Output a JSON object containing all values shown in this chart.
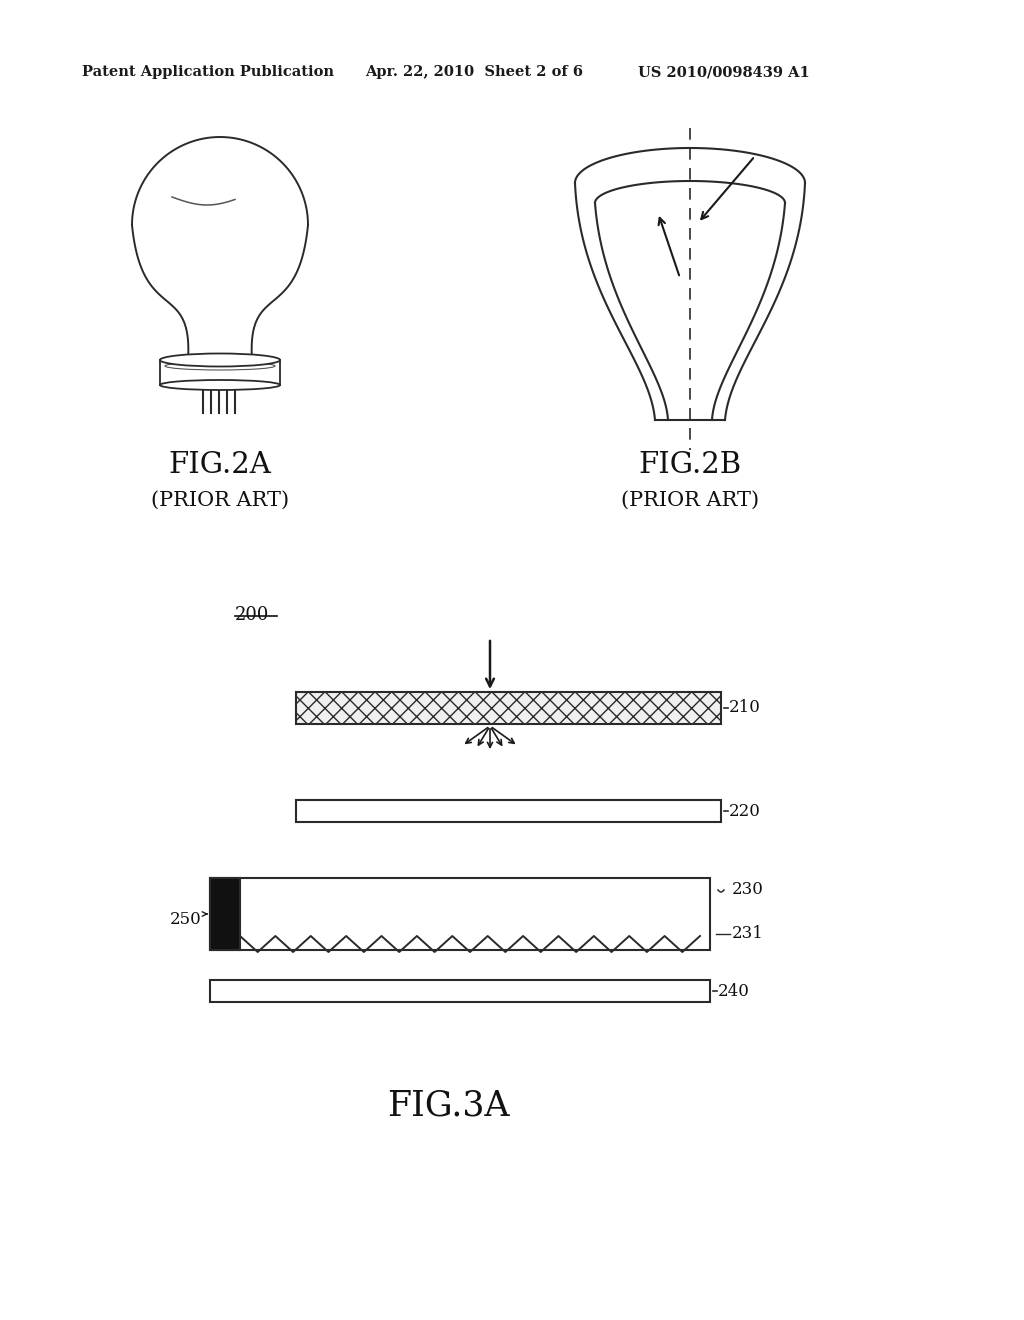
{
  "background_color": "#ffffff",
  "header_left": "Patent Application Publication",
  "header_mid": "Apr. 22, 2010  Sheet 2 of 6",
  "header_right": "US 2010/0098439 A1",
  "fig2a_label": "FIG.2A",
  "fig2a_sub": "(PRIOR ART)",
  "fig2b_label": "FIG.2B",
  "fig2b_sub": "(PRIOR ART)",
  "fig3a_label": "FIG.3A",
  "label_200": "200",
  "label_210": "210",
  "label_220": "220",
  "label_230": "230",
  "label_231": "231",
  "label_240": "240",
  "label_250": "250"
}
